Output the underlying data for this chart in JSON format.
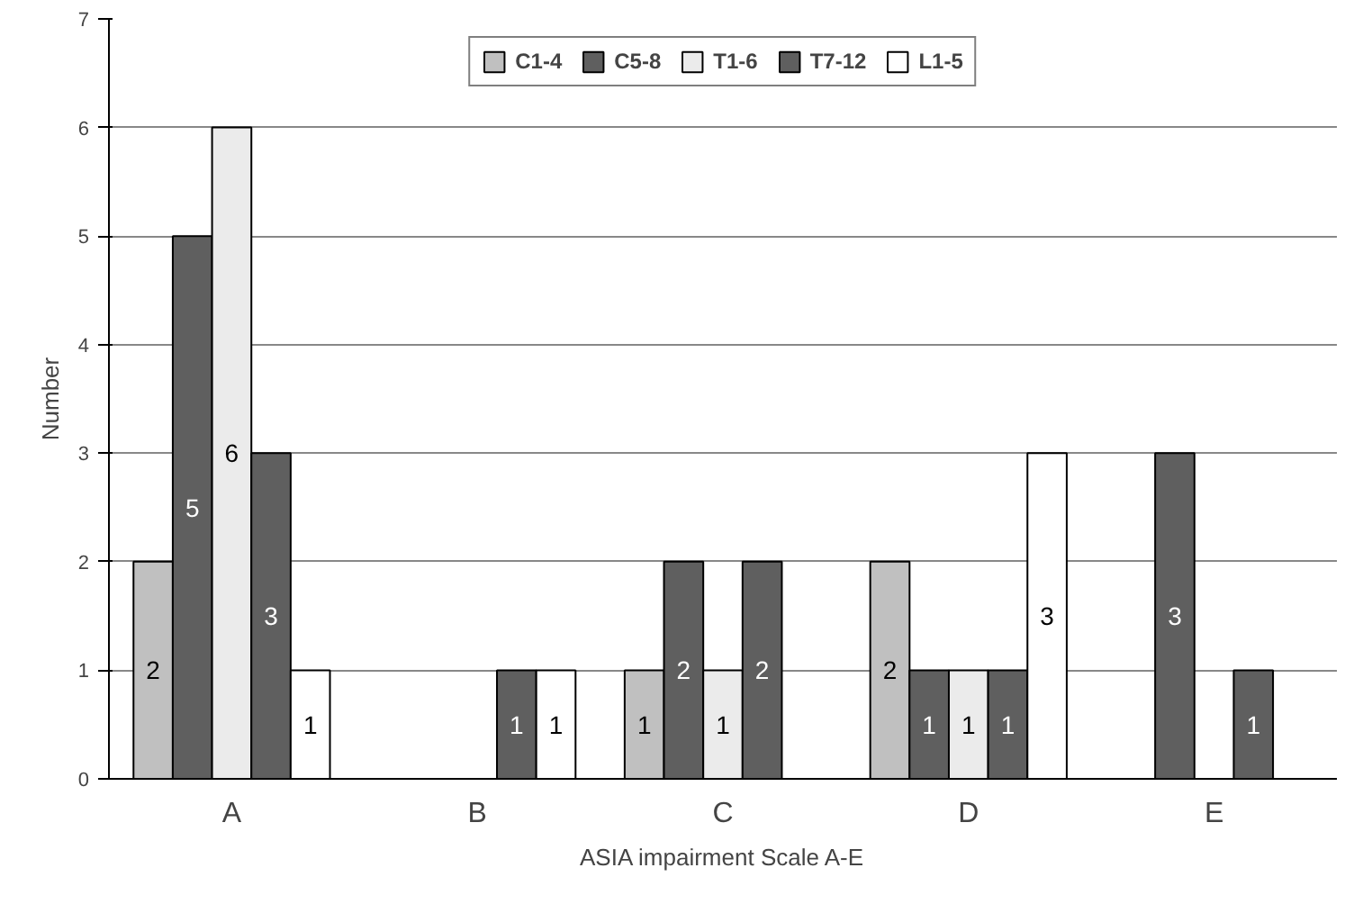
{
  "chart_data": {
    "type": "bar",
    "xlabel": "ASIA impairment Scale A-E",
    "ylabel": "Number",
    "categories": [
      "A",
      "B",
      "C",
      "D",
      "E"
    ],
    "series": [
      {
        "name": "C1-4",
        "color": "#c0c0c0",
        "values": [
          2,
          0,
          1,
          2,
          0
        ],
        "value_labels": [
          "2",
          null,
          "1",
          "2",
          null
        ]
      },
      {
        "name": "C5-8",
        "color": "#5f5f5f",
        "values": [
          5,
          0,
          2,
          1,
          3
        ],
        "value_labels": [
          "5",
          null,
          "2",
          "1",
          "3"
        ]
      },
      {
        "name": "T1-6",
        "color": "#ebebeb",
        "values": [
          6,
          0,
          1,
          1,
          0
        ],
        "value_labels": [
          "6",
          null,
          "1",
          "1",
          null
        ]
      },
      {
        "name": "T7-12",
        "color": "#5f5f5f",
        "values": [
          3,
          1,
          2,
          1,
          1
        ],
        "value_labels": [
          "3",
          "1",
          "2",
          "1",
          "1"
        ]
      },
      {
        "name": "L1-5",
        "color": "#ffffff",
        "values": [
          1,
          1,
          0,
          3,
          0
        ],
        "value_labels": [
          "1",
          "1",
          null,
          "3",
          null
        ]
      }
    ],
    "ylim": [
      0,
      7
    ],
    "yticks": [
      0,
      1,
      2,
      3,
      4,
      5,
      6,
      7
    ],
    "grid": "y",
    "legend": "top"
  }
}
